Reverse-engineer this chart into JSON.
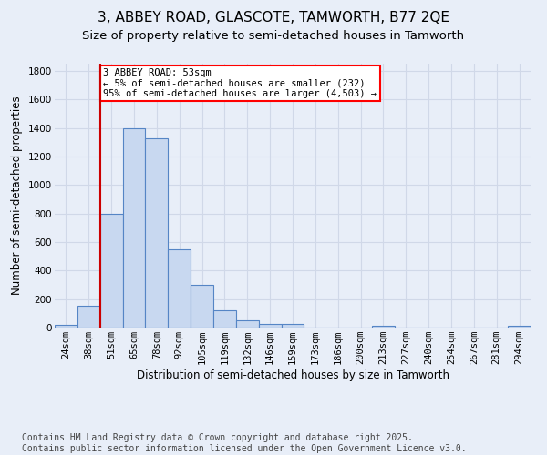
{
  "title_line1": "3, ABBEY ROAD, GLASCOTE, TAMWORTH, B77 2QE",
  "title_line2": "Size of property relative to semi-detached houses in Tamworth",
  "xlabel": "Distribution of semi-detached houses by size in Tamworth",
  "ylabel": "Number of semi-detached properties",
  "footnote": "Contains HM Land Registry data © Crown copyright and database right 2025.\nContains public sector information licensed under the Open Government Licence v3.0.",
  "bin_labels": [
    "24sqm",
    "38sqm",
    "51sqm",
    "65sqm",
    "78sqm",
    "92sqm",
    "105sqm",
    "119sqm",
    "132sqm",
    "146sqm",
    "159sqm",
    "173sqm",
    "186sqm",
    "200sqm",
    "213sqm",
    "227sqm",
    "240sqm",
    "254sqm",
    "267sqm",
    "281sqm",
    "294sqm"
  ],
  "bar_values": [
    20,
    150,
    800,
    1400,
    1330,
    550,
    300,
    120,
    50,
    25,
    25,
    0,
    0,
    0,
    15,
    0,
    0,
    0,
    0,
    0,
    15
  ],
  "bar_color": "#c8d8f0",
  "bar_edge_color": "#5585c5",
  "vline_index": 2,
  "vline_color": "#cc0000",
  "annotation_text": "3 ABBEY ROAD: 53sqm\n← 5% of semi-detached houses are smaller (232)\n95% of semi-detached houses are larger (4,503) →",
  "annotation_box_color": "white",
  "annotation_box_edge_color": "red",
  "ylim": [
    0,
    1850
  ],
  "yticks": [
    0,
    200,
    400,
    600,
    800,
    1000,
    1200,
    1400,
    1600,
    1800
  ],
  "background_color": "#e8eef8",
  "grid_color": "#d0d8e8",
  "title_fontsize": 11,
  "subtitle_fontsize": 9.5,
  "axis_label_fontsize": 8.5,
  "tick_fontsize": 7.5,
  "footnote_fontsize": 7
}
